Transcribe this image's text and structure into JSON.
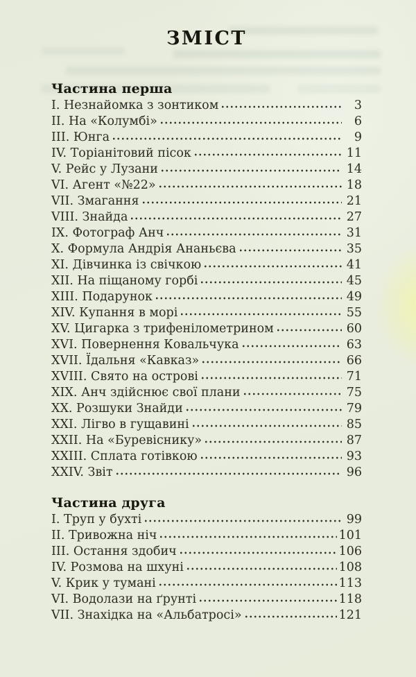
{
  "page": {
    "title": "ЗМІСТ",
    "sections": [
      {
        "heading": "Частина перша",
        "entries": [
          {
            "label": "I. Незнайомка з зонтиком",
            "page": "3"
          },
          {
            "label": "II. На «Колумбі»",
            "page": "6"
          },
          {
            "label": "III. Юнга",
            "page": "9"
          },
          {
            "label": "IV. Торіанітовий пісок",
            "page": "11"
          },
          {
            "label": "V. Рейс у Лузани",
            "page": "14"
          },
          {
            "label": "VI. Агент «№22»",
            "page": "18"
          },
          {
            "label": "VII. Змагання",
            "page": "21"
          },
          {
            "label": "VIII. Знайда",
            "page": "27"
          },
          {
            "label": "IX. Фотограф Анч",
            "page": "31"
          },
          {
            "label": "X. Формула Андрія Ананьєва",
            "page": "35"
          },
          {
            "label": "XI. Дівчинка із свічкою",
            "page": "41"
          },
          {
            "label": "XII. На піщаному горбі",
            "page": "45"
          },
          {
            "label": "XIII. Подарунок",
            "page": "49"
          },
          {
            "label": "XIV. Купання в морі",
            "page": "55"
          },
          {
            "label": "XV. Цигарка з трифенілометрином",
            "page": "60"
          },
          {
            "label": "XVI. Повернення Ковальчука",
            "page": "63"
          },
          {
            "label": "XVII. Їдальня «Кавказ»",
            "page": "66"
          },
          {
            "label": "XVIII. Свято на острові",
            "page": "71"
          },
          {
            "label": "XIX. Анч здійснює свої плани",
            "page": "75"
          },
          {
            "label": "XX. Розшуки Знайди",
            "page": "79"
          },
          {
            "label": "XXI. Лігво в гущавині",
            "page": "85"
          },
          {
            "label": "XXII. На «Буревіснику»",
            "page": "87"
          },
          {
            "label": "XXIII. Сплата готівкою",
            "page": "93"
          },
          {
            "label": "XXIV. Звіт",
            "page": "96"
          }
        ]
      },
      {
        "heading": "Частина друга",
        "entries": [
          {
            "label": "I. Труп у бухті",
            "page": "99"
          },
          {
            "label": "II. Тривожна ніч",
            "page": "101"
          },
          {
            "label": "III. Остання здобич",
            "page": "106"
          },
          {
            "label": "IV. Розмова на шхуні",
            "page": "108"
          },
          {
            "label": "V. Крик у тумані",
            "page": "113"
          },
          {
            "label": "VI. Водолази на ґрунті",
            "page": "118"
          },
          {
            "label": "VII. Знахідка на «Альбатросі»",
            "page": "121"
          }
        ]
      }
    ]
  },
  "colors": {
    "paper": "#e8ecdd",
    "ink": "#2b2b23",
    "heading_ink": "#17170f",
    "edge_spot": "#f3f6a0"
  }
}
